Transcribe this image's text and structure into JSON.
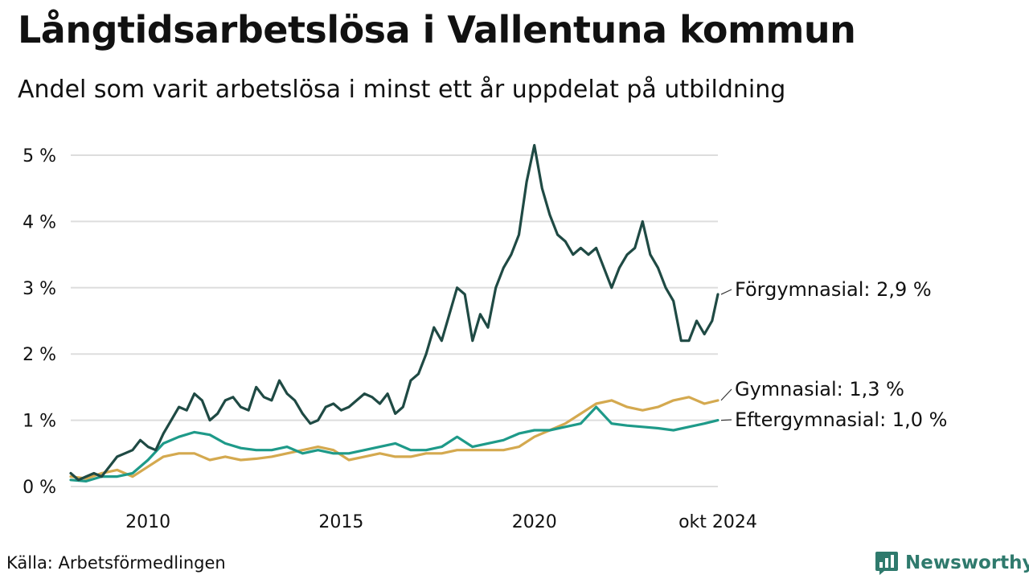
{
  "title": "Långtidsarbetslösa i Vallentuna kommun",
  "subtitle": "Andel som varit arbetslösa i minst ett år uppdelat på utbildning",
  "source": "Källa: Arbetsförmedlingen",
  "brand": {
    "name": "Newsworthy",
    "icon": "newsworthy-logo-icon",
    "color": "#2f7a6d"
  },
  "chart_data": {
    "type": "line",
    "title": "Långtidsarbetslösa i Vallentuna kommun",
    "subtitle": "Andel som varit arbetslösa i minst ett år uppdelat på utbildning",
    "xlabel": "",
    "ylabel": "",
    "x_range": [
      2008.0,
      2024.75
    ],
    "ylim": [
      0,
      5.2
    ],
    "grid": true,
    "legend": "direct labels at right end of lines",
    "y_ticks": [
      {
        "value": 0,
        "label": "0 %"
      },
      {
        "value": 1,
        "label": "1 %"
      },
      {
        "value": 2,
        "label": "2 %"
      },
      {
        "value": 3,
        "label": "3 %"
      },
      {
        "value": 4,
        "label": "4 %"
      },
      {
        "value": 5,
        "label": "5 %"
      }
    ],
    "x_ticks": [
      {
        "value": 2010,
        "label": "2010"
      },
      {
        "value": 2015,
        "label": "2015"
      },
      {
        "value": 2020,
        "label": "2020"
      },
      {
        "value": 2024.75,
        "label": "okt 2024"
      }
    ],
    "series": [
      {
        "name": "Förgymnasial",
        "end_label": "Förgymnasial: 2,9 %",
        "color": "#1f4a44",
        "x": [
          2008.0,
          2008.2,
          2008.4,
          2008.6,
          2008.8,
          2009.0,
          2009.2,
          2009.4,
          2009.6,
          2009.8,
          2010.0,
          2010.2,
          2010.4,
          2010.6,
          2010.8,
          2011.0,
          2011.2,
          2011.4,
          2011.6,
          2011.8,
          2012.0,
          2012.2,
          2012.4,
          2012.6,
          2012.8,
          2013.0,
          2013.2,
          2013.4,
          2013.6,
          2013.8,
          2014.0,
          2014.2,
          2014.4,
          2014.6,
          2014.8,
          2015.0,
          2015.2,
          2015.4,
          2015.6,
          2015.8,
          2016.0,
          2016.2,
          2016.4,
          2016.6,
          2016.8,
          2017.0,
          2017.2,
          2017.4,
          2017.6,
          2017.8,
          2018.0,
          2018.2,
          2018.4,
          2018.6,
          2018.8,
          2019.0,
          2019.2,
          2019.4,
          2019.6,
          2019.8,
          2020.0,
          2020.2,
          2020.4,
          2020.6,
          2020.8,
          2021.0,
          2021.2,
          2021.4,
          2021.6,
          2021.8,
          2022.0,
          2022.2,
          2022.4,
          2022.6,
          2022.8,
          2023.0,
          2023.2,
          2023.4,
          2023.6,
          2023.8,
          2024.0,
          2024.2,
          2024.4,
          2024.6,
          2024.75
        ],
        "values": [
          0.2,
          0.1,
          0.15,
          0.2,
          0.15,
          0.3,
          0.45,
          0.5,
          0.55,
          0.7,
          0.6,
          0.55,
          0.8,
          1.0,
          1.2,
          1.15,
          1.4,
          1.3,
          1.0,
          1.1,
          1.3,
          1.35,
          1.2,
          1.15,
          1.5,
          1.35,
          1.3,
          1.6,
          1.4,
          1.3,
          1.1,
          0.95,
          1.0,
          1.2,
          1.25,
          1.15,
          1.2,
          1.3,
          1.4,
          1.35,
          1.25,
          1.4,
          1.1,
          1.2,
          1.6,
          1.7,
          2.0,
          2.4,
          2.2,
          2.6,
          3.0,
          2.9,
          2.2,
          2.6,
          2.4,
          3.0,
          3.3,
          3.5,
          3.8,
          4.6,
          5.15,
          4.5,
          4.1,
          3.8,
          3.7,
          3.5,
          3.6,
          3.5,
          3.6,
          3.3,
          3.0,
          3.3,
          3.5,
          3.6,
          4.0,
          3.5,
          3.3,
          3.0,
          2.8,
          2.2,
          2.2,
          2.5,
          2.3,
          2.5,
          2.9
        ]
      },
      {
        "name": "Gymnasial",
        "end_label": "Gymnasial: 1,3 %",
        "color": "#d4a94f",
        "x": [
          2008.0,
          2008.4,
          2008.8,
          2009.2,
          2009.6,
          2010.0,
          2010.4,
          2010.8,
          2011.2,
          2011.6,
          2012.0,
          2012.4,
          2012.8,
          2013.2,
          2013.6,
          2014.0,
          2014.4,
          2014.8,
          2015.2,
          2015.6,
          2016.0,
          2016.4,
          2016.8,
          2017.2,
          2017.6,
          2018.0,
          2018.4,
          2018.8,
          2019.2,
          2019.6,
          2020.0,
          2020.4,
          2020.8,
          2021.2,
          2021.6,
          2022.0,
          2022.4,
          2022.8,
          2023.2,
          2023.6,
          2024.0,
          2024.4,
          2024.75
        ],
        "values": [
          0.15,
          0.12,
          0.2,
          0.25,
          0.15,
          0.3,
          0.45,
          0.5,
          0.5,
          0.4,
          0.45,
          0.4,
          0.42,
          0.45,
          0.5,
          0.55,
          0.6,
          0.55,
          0.4,
          0.45,
          0.5,
          0.45,
          0.45,
          0.5,
          0.5,
          0.55,
          0.55,
          0.55,
          0.55,
          0.6,
          0.75,
          0.85,
          0.95,
          1.1,
          1.25,
          1.3,
          1.2,
          1.15,
          1.2,
          1.3,
          1.35,
          1.25,
          1.3
        ]
      },
      {
        "name": "Eftergymnasial",
        "end_label": "Eftergymnasial: 1,0 %",
        "color": "#1e9a89",
        "x": [
          2008.0,
          2008.4,
          2008.8,
          2009.2,
          2009.6,
          2010.0,
          2010.4,
          2010.8,
          2011.2,
          2011.6,
          2012.0,
          2012.4,
          2012.8,
          2013.2,
          2013.6,
          2014.0,
          2014.4,
          2014.8,
          2015.2,
          2015.6,
          2016.0,
          2016.4,
          2016.8,
          2017.2,
          2017.6,
          2018.0,
          2018.4,
          2018.8,
          2019.2,
          2019.6,
          2020.0,
          2020.4,
          2020.8,
          2021.2,
          2021.6,
          2022.0,
          2022.4,
          2022.8,
          2023.2,
          2023.6,
          2024.0,
          2024.4,
          2024.75
        ],
        "values": [
          0.1,
          0.08,
          0.15,
          0.15,
          0.2,
          0.4,
          0.65,
          0.75,
          0.82,
          0.78,
          0.65,
          0.58,
          0.55,
          0.55,
          0.6,
          0.5,
          0.55,
          0.5,
          0.5,
          0.55,
          0.6,
          0.65,
          0.55,
          0.55,
          0.6,
          0.75,
          0.6,
          0.65,
          0.7,
          0.8,
          0.85,
          0.85,
          0.9,
          0.95,
          1.2,
          0.95,
          0.92,
          0.9,
          0.88,
          0.85,
          0.9,
          0.95,
          1.0
        ]
      }
    ]
  }
}
